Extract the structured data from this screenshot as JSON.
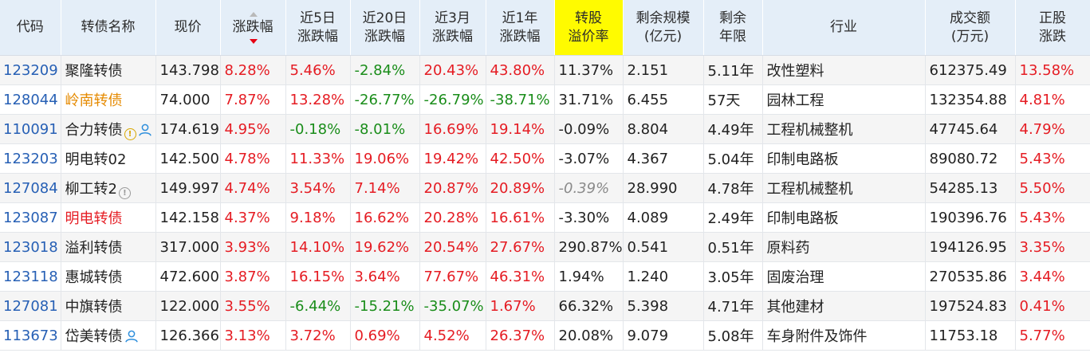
{
  "headers": [
    {
      "key": "code",
      "label": [
        "代码"
      ]
    },
    {
      "key": "name",
      "label": [
        "转债名称"
      ]
    },
    {
      "key": "price",
      "label": [
        "现价"
      ]
    },
    {
      "key": "chg",
      "label": [
        "涨跌幅"
      ],
      "sort": "desc"
    },
    {
      "key": "chg5d",
      "label": [
        "近5日",
        "涨跌幅"
      ]
    },
    {
      "key": "chg20d",
      "label": [
        "近20日",
        "涨跌幅"
      ]
    },
    {
      "key": "chg3m",
      "label": [
        "近3月",
        "涨跌幅"
      ]
    },
    {
      "key": "chg1y",
      "label": [
        "近1年",
        "涨跌幅"
      ]
    },
    {
      "key": "premium",
      "label": [
        "转股",
        "溢价率"
      ],
      "highlight": "#fffb00"
    },
    {
      "key": "scale",
      "label": [
        "剩余规模",
        "(亿元)"
      ]
    },
    {
      "key": "term",
      "label": [
        "剩余",
        "年限"
      ]
    },
    {
      "key": "industry",
      "label": [
        "行业"
      ]
    },
    {
      "key": "volume",
      "label": [
        "成交额",
        "(万元)"
      ]
    },
    {
      "key": "stock_chg",
      "label": [
        "正股",
        "涨跌"
      ]
    }
  ],
  "colors": {
    "up": "#e51c23",
    "down": "#1a8d1a",
    "code": "#2760b5",
    "highlight": "#fffb00",
    "header_bg": "#e4eef8"
  },
  "rows": [
    {
      "code": "123209",
      "name": "聚隆转债",
      "name_color": "normal",
      "icons": [],
      "price": "143.798",
      "chg": "8.28%",
      "chg5d": "5.46%",
      "chg20d": "-2.84%",
      "chg3m": "20.43%",
      "chg1y": "43.80%",
      "premium": "11.37%",
      "scale": "2.151",
      "term": "5.11年",
      "industry": "改性塑料",
      "volume": "612375.49",
      "stock_chg": "13.58%"
    },
    {
      "code": "128044",
      "name": "岭南转债",
      "name_color": "orange",
      "icons": [],
      "price": "74.000",
      "chg": "7.87%",
      "chg5d": "13.28%",
      "chg20d": "-26.77%",
      "chg3m": "-26.79%",
      "chg1y": "-38.71%",
      "premium": "31.71%",
      "scale": "6.455",
      "term": "57天",
      "industry": "园林工程",
      "volume": "132354.88",
      "stock_chg": "4.81%"
    },
    {
      "code": "110091",
      "name": "合力转债",
      "name_color": "normal",
      "icons": [
        "warning-icon",
        "user-icon"
      ],
      "price": "174.619",
      "chg": "4.95%",
      "chg5d": "-0.18%",
      "chg20d": "-8.01%",
      "chg3m": "16.69%",
      "chg1y": "19.14%",
      "premium": "-0.09%",
      "scale": "8.804",
      "term": "4.49年",
      "industry": "工程机械整机",
      "volume": "47745.64",
      "stock_chg": "4.79%"
    },
    {
      "code": "123203",
      "name": "明电转02",
      "name_color": "normal",
      "icons": [],
      "price": "142.500",
      "chg": "4.78%",
      "chg5d": "11.33%",
      "chg20d": "19.06%",
      "chg3m": "19.42%",
      "chg1y": "42.50%",
      "premium": "-3.07%",
      "scale": "4.367",
      "term": "5.04年",
      "industry": "印制电路板",
      "volume": "89080.72",
      "stock_chg": "5.43%"
    },
    {
      "code": "127084",
      "name": "柳工转2",
      "name_color": "normal",
      "icons": [
        "info-icon"
      ],
      "price": "149.997",
      "chg": "4.74%",
      "chg5d": "3.54%",
      "chg20d": "7.14%",
      "chg3m": "20.87%",
      "chg1y": "20.89%",
      "premium": "-0.39%",
      "premium_style": "muted",
      "scale": "28.990",
      "term": "4.78年",
      "industry": "工程机械整机",
      "volume": "54285.13",
      "stock_chg": "5.50%"
    },
    {
      "code": "123087",
      "name": "明电转债",
      "name_color": "red",
      "icons": [],
      "price": "142.158",
      "chg": "4.37%",
      "chg5d": "9.18%",
      "chg20d": "16.62%",
      "chg3m": "20.28%",
      "chg1y": "16.61%",
      "premium": "-3.30%",
      "scale": "4.089",
      "term": "2.49年",
      "industry": "印制电路板",
      "volume": "190396.76",
      "stock_chg": "5.43%"
    },
    {
      "code": "123018",
      "name": "溢利转债",
      "name_color": "normal",
      "icons": [],
      "price": "317.000",
      "chg": "3.93%",
      "chg5d": "14.10%",
      "chg20d": "19.62%",
      "chg3m": "20.54%",
      "chg1y": "27.67%",
      "premium": "290.87%",
      "scale": "0.541",
      "term": "0.51年",
      "industry": "原料药",
      "volume": "194126.95",
      "stock_chg": "3.35%"
    },
    {
      "code": "123118",
      "name": "惠城转债",
      "name_color": "normal",
      "icons": [],
      "price": "472.600",
      "chg": "3.87%",
      "chg5d": "16.15%",
      "chg20d": "3.64%",
      "chg3m": "77.67%",
      "chg1y": "46.31%",
      "premium": "1.94%",
      "scale": "1.240",
      "term": "3.05年",
      "industry": "固废治理",
      "volume": "270535.86",
      "stock_chg": "3.44%"
    },
    {
      "code": "127081",
      "name": "中旗转债",
      "name_color": "normal",
      "icons": [],
      "price": "122.000",
      "chg": "3.55%",
      "chg5d": "-6.44%",
      "chg20d": "-15.21%",
      "chg3m": "-35.07%",
      "chg1y": "1.67%",
      "premium": "66.32%",
      "scale": "5.398",
      "term": "4.71年",
      "industry": "其他建材",
      "volume": "197524.83",
      "stock_chg": "0.41%"
    },
    {
      "code": "113673",
      "name": "岱美转债",
      "name_color": "normal",
      "icons": [
        "user-icon"
      ],
      "price": "126.366",
      "chg": "3.13%",
      "chg5d": "3.72%",
      "chg20d": "0.69%",
      "chg3m": "4.52%",
      "chg1y": "26.37%",
      "premium": "20.08%",
      "scale": "9.079",
      "term": "5.08年",
      "industry": "车身附件及饰件",
      "volume": "11753.18",
      "stock_chg": "5.77%"
    }
  ]
}
